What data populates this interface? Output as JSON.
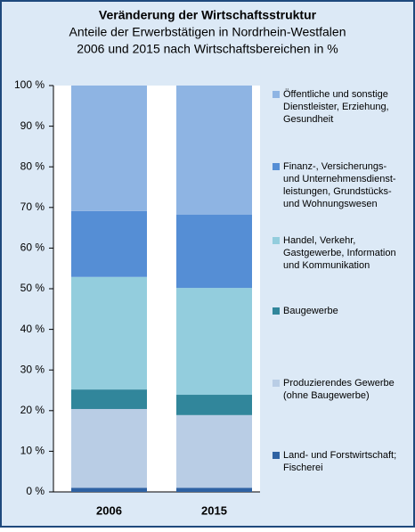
{
  "chart_data": {
    "type": "stacked-bar",
    "title": "Veränderung der Wirtschaftsstruktur",
    "subtitle": [
      "Anteile der Erwerbstätigen in Nordrhein-Westfalen",
      "2006 und 2015 nach Wirtschaftsbereichen in %"
    ],
    "categories": [
      "2006",
      "2015"
    ],
    "series": [
      {
        "name": "Land- und Forstwirtschaft;\nFischerei",
        "color": "#2f62a3",
        "values": [
          1.0,
          1.0
        ]
      },
      {
        "name": "Produzierendes Gewerbe\n(ohne Baugewerbe)",
        "color": "#b9cde5",
        "values": [
          19.4,
          17.9
        ]
      },
      {
        "name": "Baugewerbe",
        "color": "#31869b",
        "values": [
          4.8,
          5.0
        ]
      },
      {
        "name": "Handel, Verkehr,\nGastgewerbe, Information\nund Kommunikation",
        "color": "#93cddd",
        "values": [
          27.7,
          26.3
        ]
      },
      {
        "name": "Finanz-, Versicherungs-\nund Unternehmensdienst-\nleistungen, Grundstücks-\nund Wohnungswesen",
        "color": "#558ed5",
        "values": [
          16.2,
          18.0
        ]
      },
      {
        "name": "Öffentliche und sonstige\nDienstleister, Erziehung,\nGesundheit",
        "color": "#8eb4e3",
        "values": [
          30.9,
          31.8
        ]
      }
    ],
    "ylim": [
      0,
      100
    ],
    "yticks": [
      {
        "value": 0,
        "label": "0 %"
      },
      {
        "value": 10,
        "label": "10 %"
      },
      {
        "value": 20,
        "label": "20 %"
      },
      {
        "value": 30,
        "label": "30 %"
      },
      {
        "value": 40,
        "label": "40 %"
      },
      {
        "value": 50,
        "label": "50 %"
      },
      {
        "value": 60,
        "label": "60 %"
      },
      {
        "value": 70,
        "label": "70 %"
      },
      {
        "value": 80,
        "label": "80 %"
      },
      {
        "value": 90,
        "label": "90 %"
      },
      {
        "value": 100,
        "label": "100 %"
      }
    ]
  }
}
